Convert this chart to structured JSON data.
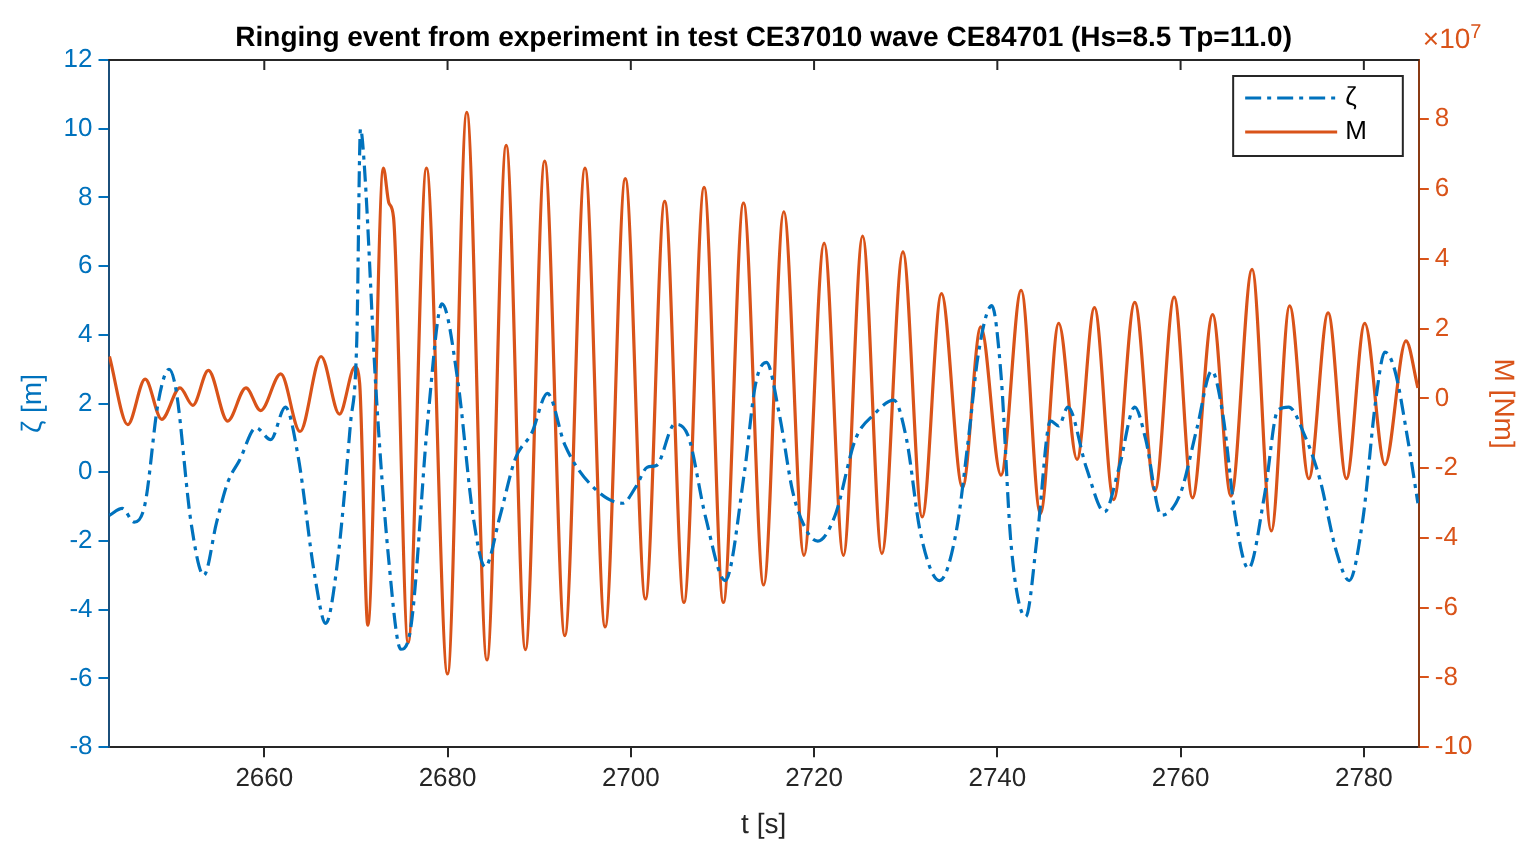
{
  "chart_data": {
    "type": "line",
    "title": "Ringing event from experiment in test CE37010 wave CE84701 (Hs=8.5 Tp=11.0)",
    "xlabel": "t [s]",
    "ylabel": "ζ [m]",
    "y2label": "M [Nm]",
    "annotations": [
      "×10$^{7}$"
    ],
    "xlim": [
      2643,
      2786
    ],
    "xticks": [
      2660,
      2680,
      2700,
      2720,
      2740,
      2760,
      2780
    ],
    "ylim": [
      -8,
      12
    ],
    "yticks": [
      -8,
      -6,
      -4,
      -2,
      0,
      2,
      4,
      6,
      8,
      10,
      12
    ],
    "y2lim": [
      -10,
      9.7
    ],
    "y2ticks": [
      -10,
      -8,
      -6,
      -4,
      -2,
      0,
      2,
      4,
      6,
      8
    ],
    "grid": false,
    "legend": "top right",
    "marker": "none",
    "series": [
      {
        "name": "ζ",
        "color": "#0072bd",
        "line_style": "dashdot",
        "x": [
          2643.1,
          2644.5,
          2645.8,
          2647.0,
          2648.4,
          2649.6,
          2650.4,
          2652.0,
          2653.4,
          2654.8,
          2656.0,
          2657.3,
          2659.1,
          2660.7,
          2662.3,
          2663.7,
          2665.5,
          2666.7,
          2667.9,
          2669.4,
          2670.1,
          2670.5,
          2670.9,
          2672.2,
          2673.6,
          2674.9,
          2676.0,
          2677.9,
          2679.4,
          2681.1,
          2682.8,
          2684.1,
          2685.7,
          2687.4,
          2689.2,
          2690.9,
          2692.8,
          2695.6,
          2699.1,
          2700.6,
          2701.8,
          2702.8,
          2704.8,
          2706.2,
          2708.2,
          2710.3,
          2712.4,
          2713.6,
          2714.8,
          2716.2,
          2717.7,
          2719.3,
          2720.4,
          2722.3,
          2724.5,
          2726.6,
          2728.7,
          2730.1,
          2731.6,
          2733.7,
          2735.5,
          2736.9,
          2737.9,
          2739.4,
          2740.4,
          2741.5,
          2743.1,
          2744.4,
          2745.8,
          2746.7,
          2747.7,
          2749.7,
          2751.7,
          2753.3,
          2755.0,
          2756.2,
          2757.9,
          2760.0,
          2761.8,
          2763.4,
          2764.6,
          2766.0,
          2767.4,
          2769.2,
          2770.6,
          2771.8,
          2773.5,
          2775.2,
          2777.0,
          2778.4,
          2779.9,
          2781.3,
          2782.3,
          2783.4,
          2784.8,
          2785.9
        ],
        "values": [
          -1.25,
          -1.05,
          -1.45,
          -0.9,
          2.0,
          3.0,
          2.35,
          -1.45,
          -3.0,
          -1.45,
          -0.3,
          0.35,
          1.3,
          0.95,
          1.9,
          0.45,
          -3.0,
          -4.4,
          -2.8,
          1.4,
          3.9,
          10.0,
          9.0,
          2.35,
          -2.6,
          -5.15,
          -4.5,
          1.7,
          4.9,
          2.7,
          -1.3,
          -2.75,
          -1.3,
          0.4,
          1.15,
          2.3,
          0.8,
          -0.35,
          -0.9,
          -0.4,
          0.15,
          0.2,
          1.4,
          1.1,
          -1.35,
          -3.15,
          0,
          2.55,
          3.2,
          1.7,
          -0.6,
          -1.75,
          -2.0,
          -1.25,
          0.95,
          1.7,
          2.1,
          0.95,
          -1.75,
          -3.15,
          -1.75,
          1.1,
          3.4,
          4.85,
          2.85,
          -2.1,
          -4.2,
          -1.75,
          1.5,
          1.35,
          1.9,
          0.15,
          -1.15,
          0.15,
          1.9,
          0.95,
          -1.25,
          -0.6,
          1.3,
          2.95,
          1.7,
          -1.35,
          -2.8,
          -0.6,
          1.8,
          1.9,
          1.1,
          -0.2,
          -2.3,
          -3.15,
          -1.35,
          2.1,
          3.5,
          2.95,
          0.95,
          -0.9
        ]
      },
      {
        "name": "M",
        "color": "#d95319",
        "line_style": "solid",
        "axis": "y2",
        "x": [
          2643.1,
          2645.1,
          2647.0,
          2648.8,
          2650.8,
          2652.2,
          2653.9,
          2656.0,
          2658.0,
          2659.6,
          2661.8,
          2663.9,
          2666.2,
          2668.2,
          2669.9,
          2670.4,
          2671.3,
          2673.0,
          2673.6,
          2674.1,
          2675.7,
          2677.7,
          2680.0,
          2682.1,
          2684.3,
          2686.4,
          2688.5,
          2690.6,
          2692.8,
          2695.0,
          2697.2,
          2699.4,
          2701.6,
          2703.7,
          2705.8,
          2708.0,
          2710.1,
          2712.3,
          2714.5,
          2716.7,
          2718.9,
          2721.1,
          2723.2,
          2725.3,
          2727.4,
          2729.7,
          2731.8,
          2733.9,
          2736.2,
          2738.2,
          2740.4,
          2742.6,
          2744.7,
          2746.7,
          2748.7,
          2750.6,
          2752.7,
          2755.0,
          2757.2,
          2759.3,
          2761.3,
          2763.5,
          2765.5,
          2767.8,
          2769.9,
          2771.9,
          2774.0,
          2776.1,
          2778.1,
          2780.1,
          2782.3,
          2784.6,
          2785.9
        ],
        "values": [
          1.2,
          -0.75,
          0.55,
          -0.6,
          0.3,
          -0.2,
          0.8,
          -0.65,
          0.3,
          -0.35,
          0.7,
          -0.95,
          1.2,
          -0.45,
          0.9,
          0.45,
          -6.5,
          6.6,
          5.6,
          5.2,
          -7.0,
          6.6,
          -7.9,
          8.2,
          -7.5,
          7.25,
          -7.2,
          6.8,
          -6.8,
          6.6,
          -6.55,
          6.3,
          -5.75,
          5.65,
          -5.85,
          6.05,
          -5.85,
          5.6,
          -5.35,
          5.35,
          -4.5,
          4.45,
          -4.5,
          4.65,
          -4.45,
          4.2,
          -3.4,
          3.0,
          -2.55,
          2.05,
          -2.2,
          3.1,
          -3.3,
          2.15,
          -1.75,
          2.6,
          -2.9,
          2.75,
          -2.65,
          2.9,
          -2.85,
          2.4,
          -2.8,
          3.7,
          -3.8,
          2.65,
          -2.3,
          2.45,
          -2.3,
          2.15,
          -1.9,
          1.65,
          0.3
        ]
      }
    ]
  }
}
